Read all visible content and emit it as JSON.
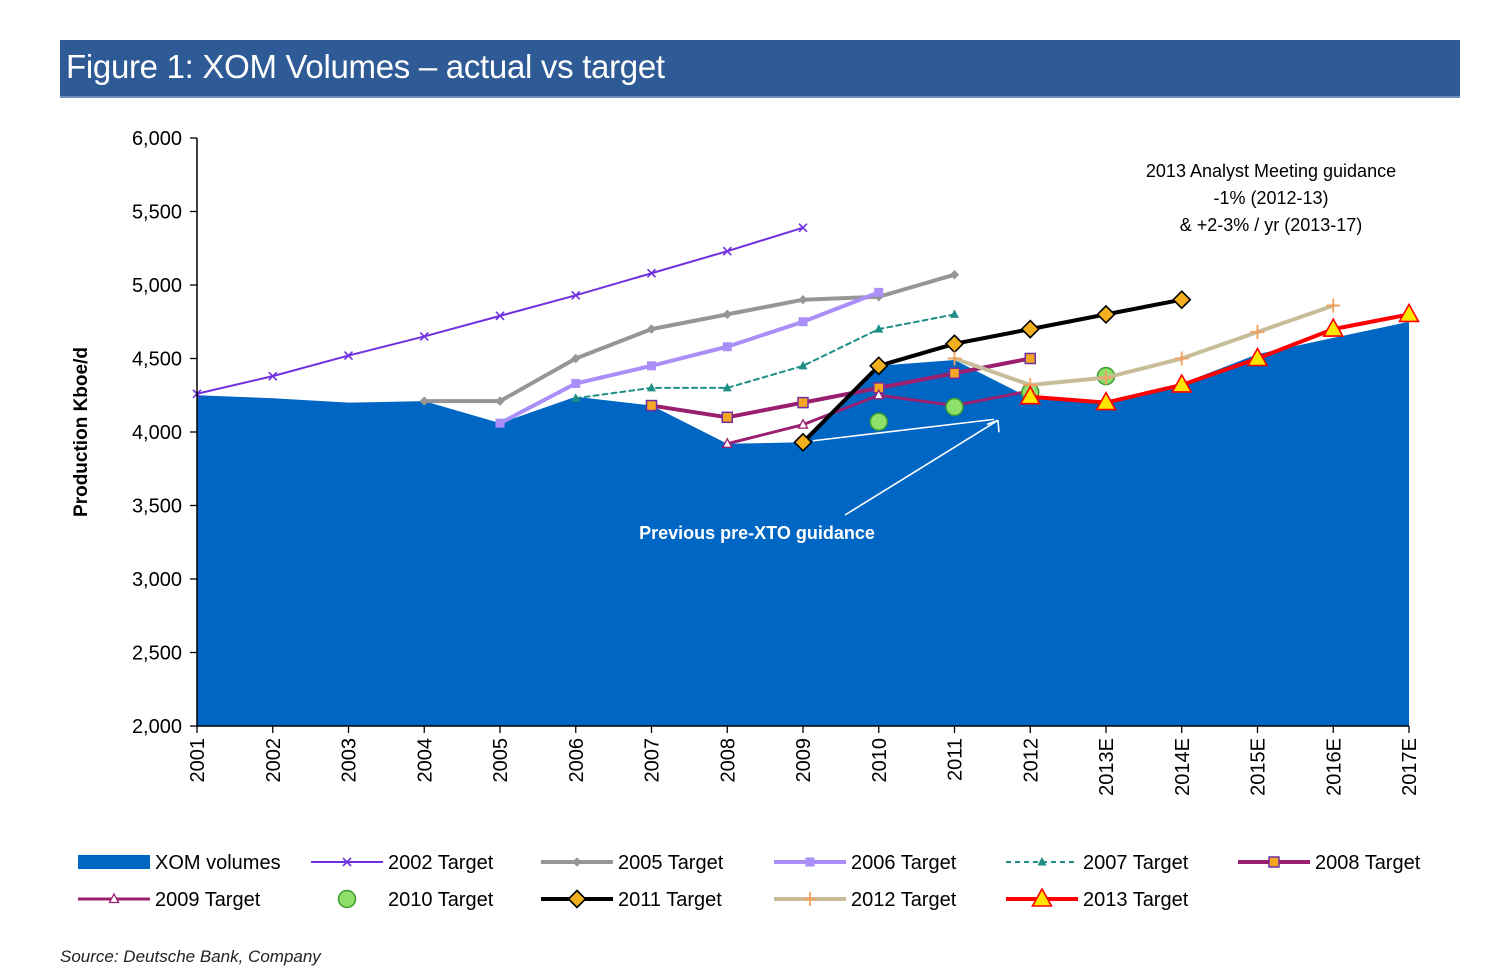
{
  "header": {
    "title": "Figure 1: XOM Volumes – actual vs target"
  },
  "footer": {
    "source": "Source: Deutsche Bank, Company"
  },
  "chart_data": {
    "type": "line",
    "title": "Figure 1: XOM Volumes – actual vs target",
    "ylabel": "Production Kboe/d",
    "xlabel": "",
    "ylim": [
      2000,
      6000
    ],
    "yticks": [
      2000,
      2500,
      3000,
      3500,
      4000,
      4500,
      5000,
      5500,
      6000
    ],
    "ytick_labels": [
      "2,000",
      "2,500",
      "3,000",
      "3,500",
      "4,000",
      "4,500",
      "5,000",
      "5,500",
      "6,000"
    ],
    "categories": [
      "2001",
      "2002",
      "2003",
      "2004",
      "2005",
      "2006",
      "2007",
      "2008",
      "2009",
      "2010",
      "2011",
      "2012",
      "2013E",
      "2014E",
      "2015E",
      "2016E",
      "2017E"
    ],
    "grid": false,
    "legend_position": "bottom",
    "annotations": [
      {
        "lines": [
          "2013 Analyst Meeting guidance",
          "-1% (2012-13)",
          "& +2-3% / yr (2013-17)"
        ]
      },
      {
        "text": "Previous pre-XTO guidance"
      }
    ],
    "area": {
      "name": "XOM volumes",
      "color": "#0066c4",
      "values": [
        4250,
        4230,
        4200,
        4210,
        4060,
        4240,
        4180,
        3920,
        3930,
        4450,
        4490,
        4230,
        4200,
        4330,
        4530,
        4640,
        4750
      ]
    },
    "series": [
      {
        "name": "2002 Target",
        "color": "#7030e0",
        "width": 2,
        "marker": "x",
        "points": [
          [
            0,
            4260
          ],
          [
            1,
            4380
          ],
          [
            2,
            4520
          ],
          [
            3,
            4650
          ],
          [
            4,
            4790
          ],
          [
            5,
            4930
          ],
          [
            6,
            5080
          ],
          [
            7,
            5230
          ],
          [
            8,
            5390
          ]
        ]
      },
      {
        "name": "2005 Target",
        "color": "#969696",
        "width": 4,
        "marker": "diamond-small",
        "points": [
          [
            3,
            4210
          ],
          [
            4,
            4210
          ],
          [
            5,
            4500
          ],
          [
            6,
            4700
          ],
          [
            7,
            4800
          ],
          [
            8,
            4900
          ],
          [
            9,
            4920
          ],
          [
            10,
            5070
          ]
        ]
      },
      {
        "name": "2006 Target",
        "color": "#a98ff7",
        "width": 4,
        "marker": "square-small",
        "points": [
          [
            4,
            4060
          ],
          [
            5,
            4330
          ],
          [
            6,
            4450
          ],
          [
            7,
            4580
          ],
          [
            8,
            4750
          ],
          [
            9,
            4950
          ]
        ]
      },
      {
        "name": "2007 Target",
        "color": "#1f8f86",
        "width": 2,
        "dashed": true,
        "marker": "triangle-small",
        "points": [
          [
            5,
            4230
          ],
          [
            6,
            4300
          ],
          [
            7,
            4300
          ],
          [
            8,
            4450
          ],
          [
            9,
            4700
          ],
          [
            10,
            4800
          ]
        ]
      },
      {
        "name": "2008 Target",
        "color": "#9b1f6f",
        "width": 4,
        "marker": "square-orange",
        "points": [
          [
            6,
            4180
          ],
          [
            7,
            4100
          ],
          [
            8,
            4200
          ],
          [
            9,
            4300
          ],
          [
            10,
            4400
          ],
          [
            11,
            4500
          ]
        ]
      },
      {
        "name": "2009 Target",
        "color": "#9b1f6f",
        "width": 3,
        "marker": "triangle-open",
        "points": [
          [
            7,
            3920
          ],
          [
            8,
            4050
          ],
          [
            9,
            4250
          ],
          [
            10,
            4180
          ],
          [
            11,
            4280
          ]
        ]
      },
      {
        "name": "2010 Target",
        "color": "#4caf50",
        "width": 0,
        "marker": "circle-green",
        "points": [
          [
            9,
            4070
          ],
          [
            10,
            4170
          ],
          [
            11,
            4270
          ],
          [
            12,
            4380
          ]
        ]
      },
      {
        "name": "2011 Target",
        "color": "#000000",
        "width": 4,
        "marker": "diamond-gold",
        "points": [
          [
            8,
            3930
          ],
          [
            9,
            4450
          ],
          [
            10,
            4600
          ],
          [
            11,
            4700
          ],
          [
            12,
            4800
          ],
          [
            13,
            4900
          ]
        ]
      },
      {
        "name": "2012 Target",
        "color": "#c7bd9a",
        "width": 4,
        "marker": "plus-orange",
        "points": [
          [
            10,
            4500
          ],
          [
            11,
            4320
          ],
          [
            12,
            4370
          ],
          [
            13,
            4500
          ],
          [
            14,
            4680
          ],
          [
            15,
            4860
          ]
        ]
      },
      {
        "name": "2013 Target",
        "color": "#ff0000",
        "width": 4,
        "marker": "triangle-yellow",
        "points": [
          [
            11,
            4240
          ],
          [
            12,
            4200
          ],
          [
            13,
            4320
          ],
          [
            14,
            4500
          ],
          [
            15,
            4700
          ],
          [
            16,
            4800
          ]
        ]
      }
    ],
    "arrow": {
      "from": [
        8,
        3920
      ],
      "to": [
        10.6,
        4120
      ]
    }
  }
}
